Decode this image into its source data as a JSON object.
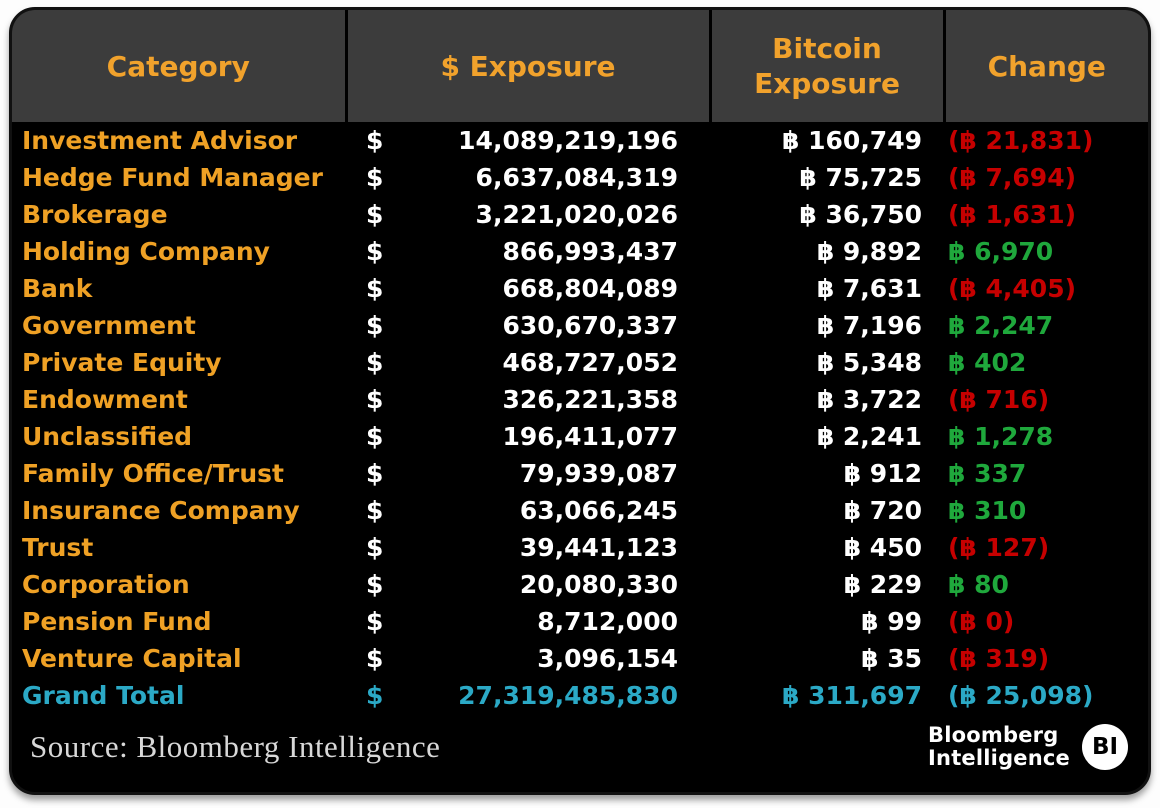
{
  "colors": {
    "header_bg": "#3c3c3c",
    "body_bg": "#000000",
    "orange": "#efa125",
    "white": "#ffffff",
    "negative_red": "#c60000",
    "positive_green": "#1fa83c",
    "total_teal": "#2ba9c6"
  },
  "table": {
    "columns": [
      {
        "label": "Category"
      },
      {
        "label": "$ Exposure"
      },
      {
        "label": "Bitcoin Exposure"
      },
      {
        "label": "Change"
      }
    ],
    "currency_symbol": "$",
    "rows": [
      {
        "category": "Investment Advisor",
        "exposure": "14,089,219,196",
        "bitcoin": "฿ 160,749",
        "change": "(฿ 21,831)",
        "direction": "down",
        "is_total": false
      },
      {
        "category": "Hedge Fund Manager",
        "exposure": "6,637,084,319",
        "bitcoin": "฿ 75,725",
        "change": "(฿ 7,694)",
        "direction": "down",
        "is_total": false
      },
      {
        "category": "Brokerage",
        "exposure": "3,221,020,026",
        "bitcoin": "฿ 36,750",
        "change": "(฿ 1,631)",
        "direction": "down",
        "is_total": false
      },
      {
        "category": "Holding Company",
        "exposure": "866,993,437",
        "bitcoin": "฿ 9,892",
        "change": "฿ 6,970",
        "direction": "up",
        "is_total": false
      },
      {
        "category": "Bank",
        "exposure": "668,804,089",
        "bitcoin": "฿ 7,631",
        "change": "(฿ 4,405)",
        "direction": "down",
        "is_total": false
      },
      {
        "category": "Government",
        "exposure": "630,670,337",
        "bitcoin": "฿ 7,196",
        "change": "฿ 2,247",
        "direction": "up",
        "is_total": false
      },
      {
        "category": "Private Equity",
        "exposure": "468,727,052",
        "bitcoin": "฿ 5,348",
        "change": "฿ 402",
        "direction": "up",
        "is_total": false
      },
      {
        "category": "Endowment",
        "exposure": "326,221,358",
        "bitcoin": "฿ 3,722",
        "change": "(฿ 716)",
        "direction": "down",
        "is_total": false
      },
      {
        "category": "Unclassified",
        "exposure": "196,411,077",
        "bitcoin": "฿ 2,241",
        "change": "฿ 1,278",
        "direction": "up",
        "is_total": false
      },
      {
        "category": "Family Office/Trust",
        "exposure": "79,939,087",
        "bitcoin": "฿ 912",
        "change": "฿ 337",
        "direction": "up",
        "is_total": false
      },
      {
        "category": "Insurance Company",
        "exposure": "63,066,245",
        "bitcoin": "฿ 720",
        "change": "฿ 310",
        "direction": "up",
        "is_total": false
      },
      {
        "category": "Trust",
        "exposure": "39,441,123",
        "bitcoin": "฿ 450",
        "change": "(฿ 127)",
        "direction": "down",
        "is_total": false
      },
      {
        "category": "Corporation",
        "exposure": "20,080,330",
        "bitcoin": "฿ 229",
        "change": "฿ 80",
        "direction": "up",
        "is_total": false
      },
      {
        "category": "Pension Fund",
        "exposure": "8,712,000",
        "bitcoin": "฿ 99",
        "change": "(฿ 0)",
        "direction": "down",
        "is_total": false
      },
      {
        "category": "Venture Capital",
        "exposure": "3,096,154",
        "bitcoin": "฿ 35",
        "change": "(฿ 319)",
        "direction": "down",
        "is_total": false
      },
      {
        "category": "Grand Total",
        "exposure": "27,319,485,830",
        "bitcoin": "฿ 311,697",
        "change": "(฿ 25,098)",
        "direction": "total",
        "is_total": true
      }
    ]
  },
  "footer": {
    "source": "Source: Bloomberg Intelligence",
    "logo": {
      "line1": "Bloomberg",
      "line2": "Intelligence",
      "badge": "BI"
    }
  },
  "chart_data": {
    "type": "table",
    "title": "Bitcoin Exposure by Category",
    "columns": [
      "Category",
      "$ Exposure",
      "Bitcoin Exposure",
      "Change"
    ],
    "rows": [
      {
        "category": "Investment Advisor",
        "usd_exposure": 14089219196,
        "btc_exposure": 160749,
        "btc_change": -21831
      },
      {
        "category": "Hedge Fund Manager",
        "usd_exposure": 6637084319,
        "btc_exposure": 75725,
        "btc_change": -7694
      },
      {
        "category": "Brokerage",
        "usd_exposure": 3221020026,
        "btc_exposure": 36750,
        "btc_change": -1631
      },
      {
        "category": "Holding Company",
        "usd_exposure": 866993437,
        "btc_exposure": 9892,
        "btc_change": 6970
      },
      {
        "category": "Bank",
        "usd_exposure": 668804089,
        "btc_exposure": 7631,
        "btc_change": -4405
      },
      {
        "category": "Government",
        "usd_exposure": 630670337,
        "btc_exposure": 7196,
        "btc_change": 2247
      },
      {
        "category": "Private Equity",
        "usd_exposure": 468727052,
        "btc_exposure": 5348,
        "btc_change": 402
      },
      {
        "category": "Endowment",
        "usd_exposure": 326221358,
        "btc_exposure": 3722,
        "btc_change": -716
      },
      {
        "category": "Unclassified",
        "usd_exposure": 196411077,
        "btc_exposure": 2241,
        "btc_change": 1278
      },
      {
        "category": "Family Office/Trust",
        "usd_exposure": 79939087,
        "btc_exposure": 912,
        "btc_change": 337
      },
      {
        "category": "Insurance Company",
        "usd_exposure": 63066245,
        "btc_exposure": 720,
        "btc_change": 310
      },
      {
        "category": "Trust",
        "usd_exposure": 39441123,
        "btc_exposure": 450,
        "btc_change": -127
      },
      {
        "category": "Corporation",
        "usd_exposure": 20080330,
        "btc_exposure": 229,
        "btc_change": 80
      },
      {
        "category": "Pension Fund",
        "usd_exposure": 8712000,
        "btc_exposure": 99,
        "btc_change": 0
      },
      {
        "category": "Venture Capital",
        "usd_exposure": 3096154,
        "btc_exposure": 35,
        "btc_change": -319
      }
    ],
    "grand_total": {
      "category": "Grand Total",
      "usd_exposure": 27319485830,
      "btc_exposure": 311697,
      "btc_change": -25098
    },
    "source": "Bloomberg Intelligence"
  }
}
